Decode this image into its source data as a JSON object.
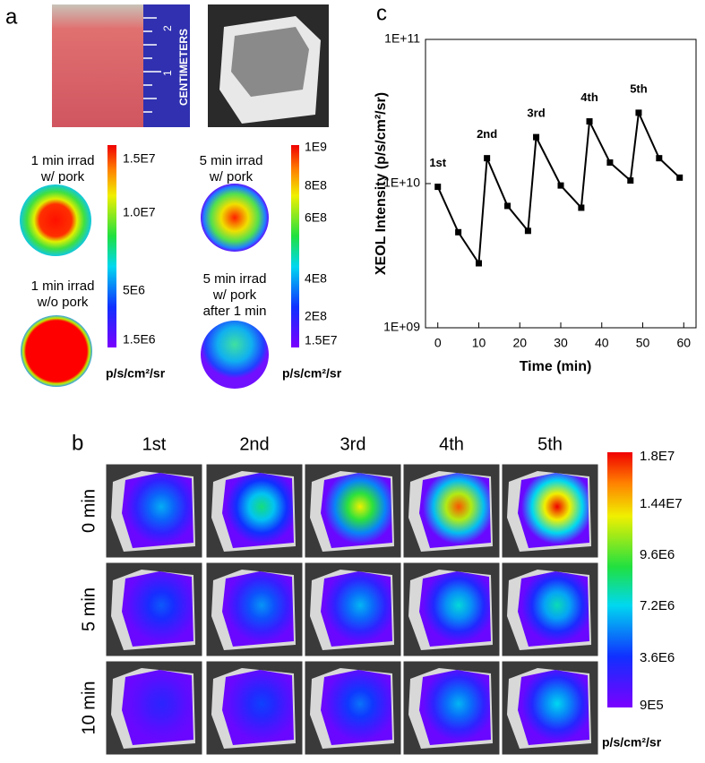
{
  "panel_a": {
    "label": "a",
    "ruler": {
      "text": "CENTIMETERS",
      "marks": [
        "1",
        "2"
      ]
    },
    "captions": [
      [
        "1 min irrad",
        "w/ pork"
      ],
      [
        "1 min irrad",
        "w/o pork"
      ],
      [
        "5 min irrad",
        "w/ pork"
      ],
      [
        "5 min irrad",
        "w/ pork",
        "after 1 min"
      ]
    ],
    "colorbar_1": [
      "1.5E7",
      "1.0E7",
      "5E6",
      "1.5E6"
    ],
    "colorbar_2": [
      "1E9",
      "8E8",
      "6E8",
      "4E8",
      "2E8",
      "1.5E7"
    ],
    "unit": "p/s/cm²/sr"
  },
  "panel_b": {
    "label": "b",
    "columns": [
      "1st",
      "2nd",
      "3rd",
      "4th",
      "5th"
    ],
    "rows": [
      "0 min",
      "5 min",
      "10 min"
    ],
    "colorbar": [
      "1.8E7",
      "1.44E7",
      "9.6E6",
      "7.2E6",
      "3.6E6",
      "9E5"
    ],
    "unit": "p/s/cm²/sr"
  },
  "chart_data": {
    "type": "line",
    "panel_label": "c",
    "x_label": "Time (min)",
    "y_label": "XEOL Intensity (p/s/cm²/sr)",
    "x": [
      0,
      5,
      10,
      12,
      17,
      22,
      24,
      30,
      35,
      37,
      42,
      47,
      49,
      54,
      59
    ],
    "y": [
      9500000000,
      4600000000,
      2800000000,
      15000000000,
      7000000000,
      4700000000,
      21000000000,
      9700000000,
      6800000000,
      27000000000,
      14000000000,
      10500000000,
      31000000000,
      15000000000,
      11000000000
    ],
    "annotations": [
      "1st",
      "2nd",
      "3rd",
      "4th",
      "5th"
    ],
    "color": "#000000",
    "xlim": [
      -3,
      63
    ],
    "xticks": [
      0,
      10,
      20,
      30,
      40,
      50,
      60
    ],
    "ylim": [
      1000000000,
      100000000000
    ],
    "yticks": [
      {
        "value": 1000000000,
        "label": "1E+09"
      },
      {
        "value": 10000000000,
        "label": "1E+10"
      },
      {
        "value": 100000000000,
        "label": "1E+11"
      }
    ],
    "log_y": true
  }
}
